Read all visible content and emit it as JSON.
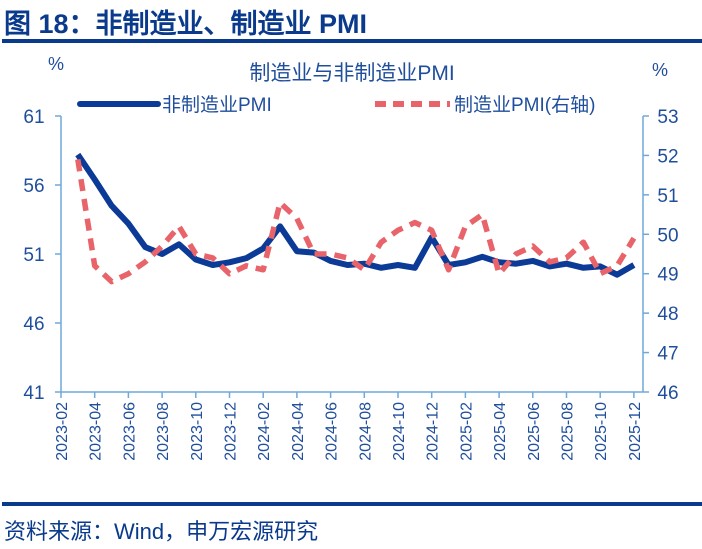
{
  "figure": {
    "title": "图 18：非制造业、制造业 PMI",
    "source": "资料来源：Wind，申万宏源研究"
  },
  "colors": {
    "title_blue": "#0a3a8c",
    "axis_blue": "#6fa8dc",
    "text_blue": "#1f4e9c",
    "series_non_manufacturing": "#0b3a97",
    "series_manufacturing": "#e8646a"
  },
  "chart_data": {
    "type": "line",
    "title": "制造业与非制造业PMI",
    "left_unit": "%",
    "right_unit": "%",
    "left_axis": {
      "ylim": [
        41,
        61
      ],
      "ticks": [
        61,
        56,
        51,
        46,
        41
      ]
    },
    "right_axis": {
      "ylim": [
        46,
        53
      ],
      "ticks": [
        53,
        52,
        51,
        50,
        49,
        48,
        47,
        46
      ]
    },
    "x_tick_labels": [
      "2023-02",
      "2023-04",
      "2023-06",
      "2023-08",
      "2023-10",
      "2023-12",
      "2024-02",
      "2024-04",
      "2024-06",
      "2024-08",
      "2024-10",
      "2024-12",
      "2025-02",
      "2025-04",
      "2025-06",
      "2025-08",
      "2025-10",
      "2025-12"
    ],
    "x": [
      "2023-03",
      "2023-04",
      "2023-05",
      "2023-06",
      "2023-07",
      "2023-08",
      "2023-09",
      "2023-10",
      "2023-11",
      "2023-12",
      "2024-01",
      "2024-02",
      "2024-03",
      "2024-04",
      "2024-05",
      "2024-06",
      "2024-07",
      "2024-08",
      "2024-09",
      "2024-10",
      "2024-11",
      "2024-12",
      "2025-01",
      "2025-02",
      "2025-03",
      "2025-04",
      "2025-05",
      "2025-06",
      "2025-07",
      "2025-08",
      "2025-09",
      "2025-10",
      "2025-11",
      "2025-12"
    ],
    "series": [
      {
        "name": "非制造业PMI",
        "axis": "left",
        "style": "solid",
        "values": [
          58.2,
          56.4,
          54.5,
          53.2,
          51.5,
          51.0,
          51.7,
          50.6,
          50.2,
          50.4,
          50.7,
          51.4,
          53.0,
          51.2,
          51.1,
          50.5,
          50.2,
          50.3,
          50.0,
          50.2,
          50.0,
          52.2,
          50.2,
          50.4,
          50.8,
          50.4,
          50.3,
          50.5,
          50.1,
          50.3,
          50.0,
          50.1,
          49.5,
          50.2
        ]
      },
      {
        "name": "制造业PMI(右轴)",
        "axis": "right",
        "style": "dashed",
        "values": [
          51.9,
          49.2,
          48.8,
          49.0,
          49.3,
          49.7,
          50.2,
          49.5,
          49.4,
          49.0,
          49.2,
          49.1,
          50.8,
          50.4,
          49.5,
          49.5,
          49.4,
          49.1,
          49.8,
          50.1,
          50.3,
          50.1,
          49.1,
          50.2,
          50.5,
          49.0,
          49.5,
          49.7,
          49.3,
          49.4,
          49.8,
          49.0,
          49.2,
          49.9
        ]
      }
    ],
    "legend": [
      "非制造业PMI",
      "制造业PMI(右轴)"
    ],
    "legend_position": "top",
    "grid": false
  }
}
